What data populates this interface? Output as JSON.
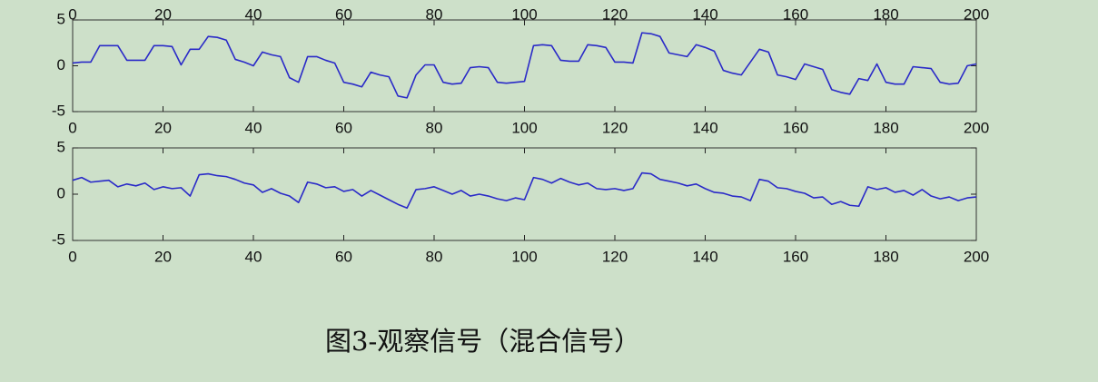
{
  "chart_data": [
    {
      "type": "axis",
      "xlim": [
        0,
        200
      ],
      "xticks": [
        0,
        20,
        40,
        60,
        80,
        100,
        120,
        140,
        160,
        180,
        200
      ]
    },
    {
      "type": "line",
      "xlim": [
        0,
        200
      ],
      "ylim": [
        -5,
        5
      ],
      "xticks": [
        0,
        20,
        40,
        60,
        80,
        100,
        120,
        140,
        160,
        180,
        200
      ],
      "yticks": [
        -5,
        0,
        5
      ],
      "x": [
        0,
        2,
        4,
        6,
        8,
        10,
        12,
        14,
        16,
        18,
        20,
        22,
        24,
        26,
        28,
        30,
        32,
        34,
        36,
        38,
        40,
        42,
        44,
        46,
        48,
        50,
        52,
        54,
        56,
        58,
        60,
        62,
        64,
        66,
        68,
        70,
        72,
        74,
        76,
        78,
        80,
        82,
        84,
        86,
        88,
        90,
        92,
        94,
        96,
        98,
        100,
        102,
        104,
        106,
        108,
        110,
        112,
        114,
        116,
        118,
        120,
        122,
        124,
        126,
        128,
        130,
        132,
        134,
        136,
        138,
        140,
        142,
        144,
        146,
        148,
        150,
        152,
        154,
        156,
        158,
        160,
        162,
        164,
        166,
        168,
        170,
        172,
        174,
        176,
        178,
        180,
        182,
        184,
        186,
        188,
        190,
        192,
        194,
        196,
        198,
        200
      ],
      "series": [
        {
          "color": "#2a2ac8",
          "values": [
            0.3,
            0.4,
            0.4,
            2.2,
            2.2,
            2.2,
            0.6,
            0.6,
            0.6,
            2.2,
            2.2,
            2.1,
            0.1,
            1.8,
            1.8,
            3.2,
            3.1,
            2.8,
            0.7,
            0.4,
            0.0,
            1.5,
            1.2,
            1.0,
            -1.3,
            -1.8,
            1.0,
            1.0,
            0.6,
            0.3,
            -1.8,
            -2.0,
            -2.3,
            -0.7,
            -1.0,
            -1.2,
            -3.3,
            -3.5,
            -1.0,
            0.1,
            0.1,
            -1.8,
            -2.0,
            -1.9,
            -0.2,
            -0.1,
            -0.2,
            -1.8,
            -1.9,
            -1.8,
            -1.7,
            2.2,
            2.3,
            2.2,
            0.6,
            0.5,
            0.5,
            2.3,
            2.2,
            2.0,
            0.4,
            0.4,
            0.3,
            3.6,
            3.5,
            3.2,
            1.4,
            1.2,
            1.0,
            2.3,
            2.0,
            1.6,
            -0.5,
            -0.8,
            -1.0,
            0.4,
            1.8,
            1.5,
            -1.0,
            -1.2,
            -1.5,
            0.2,
            -0.1,
            -0.4,
            -2.6,
            -2.9,
            -3.1,
            -1.4,
            -1.6,
            0.2,
            -1.8,
            -2.0,
            -2.0,
            -0.1,
            -0.2,
            -0.3,
            -1.8,
            -2.0,
            -1.9,
            0.0,
            0.2
          ]
        }
      ]
    },
    {
      "type": "line",
      "xlim": [
        0,
        200
      ],
      "ylim": [
        -5,
        5
      ],
      "xticks": [
        0,
        20,
        40,
        60,
        80,
        100,
        120,
        140,
        160,
        180,
        200
      ],
      "yticks": [
        -5,
        0,
        5
      ],
      "x": [
        0,
        2,
        4,
        6,
        8,
        10,
        12,
        14,
        16,
        18,
        20,
        22,
        24,
        26,
        28,
        30,
        32,
        34,
        36,
        38,
        40,
        42,
        44,
        46,
        48,
        50,
        52,
        54,
        56,
        58,
        60,
        62,
        64,
        66,
        68,
        70,
        72,
        74,
        76,
        78,
        80,
        82,
        84,
        86,
        88,
        90,
        92,
        94,
        96,
        98,
        100,
        102,
        104,
        106,
        108,
        110,
        112,
        114,
        116,
        118,
        120,
        122,
        124,
        126,
        128,
        130,
        132,
        134,
        136,
        138,
        140,
        142,
        144,
        146,
        148,
        150,
        152,
        154,
        156,
        158,
        160,
        162,
        164,
        166,
        168,
        170,
        172,
        174,
        176,
        178,
        180,
        182,
        184,
        186,
        188,
        190,
        192,
        194,
        196,
        198,
        200
      ],
      "series": [
        {
          "color": "#2a2ac8",
          "values": [
            1.5,
            1.8,
            1.3,
            1.4,
            1.5,
            0.8,
            1.1,
            0.9,
            1.2,
            0.5,
            0.8,
            0.6,
            0.7,
            -0.2,
            2.1,
            2.2,
            2.0,
            1.9,
            1.6,
            1.2,
            1.0,
            0.2,
            0.6,
            0.1,
            -0.2,
            -0.9,
            1.3,
            1.1,
            0.7,
            0.8,
            0.3,
            0.5,
            -0.2,
            0.4,
            -0.1,
            -0.6,
            -1.1,
            -1.5,
            0.5,
            0.6,
            0.8,
            0.4,
            0.0,
            0.4,
            -0.2,
            0.0,
            -0.2,
            -0.5,
            -0.7,
            -0.4,
            -0.6,
            1.8,
            1.6,
            1.2,
            1.7,
            1.3,
            1.0,
            1.2,
            0.6,
            0.5,
            0.6,
            0.4,
            0.6,
            2.3,
            2.2,
            1.6,
            1.4,
            1.2,
            0.9,
            1.1,
            0.6,
            0.2,
            0.1,
            -0.2,
            -0.3,
            -0.7,
            1.6,
            1.4,
            0.7,
            0.6,
            0.3,
            0.1,
            -0.4,
            -0.3,
            -1.1,
            -0.8,
            -1.2,
            -1.3,
            0.8,
            0.5,
            0.7,
            0.2,
            0.4,
            -0.1,
            0.5,
            -0.2,
            -0.5,
            -0.3,
            -0.7,
            -0.4,
            -0.3
          ]
        }
      ]
    }
  ],
  "caption": "图3-观察信号（混合信号）"
}
